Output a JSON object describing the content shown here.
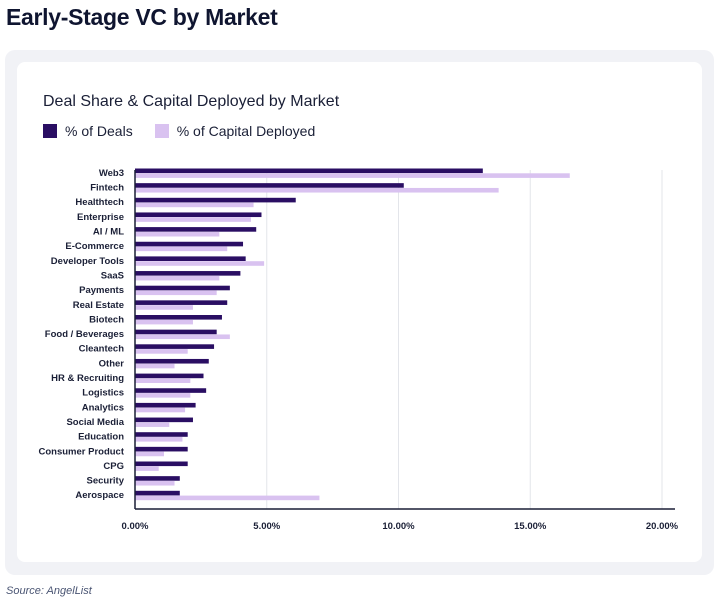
{
  "page": {
    "title": "Early-Stage VC by Market",
    "source": "Source: AngelList"
  },
  "chart_data": {
    "type": "bar",
    "orientation": "horizontal",
    "title": "Deal Share & Capital Deployed by Market",
    "xlabel": "",
    "ylabel": "",
    "xlim": [
      0,
      20
    ],
    "x_ticks": [
      "0.00%",
      "5.00%",
      "10.00%",
      "15.00%",
      "20.00%"
    ],
    "x_tick_values": [
      0,
      5,
      10,
      15,
      20
    ],
    "grid": "vertical",
    "legend_position": "top-left",
    "categories": [
      "Web3",
      "Fintech",
      "Healthtech",
      "Enterprise",
      "AI / ML",
      "E-Commerce",
      "Developer Tools",
      "SaaS",
      "Payments",
      "Real Estate",
      "Biotech",
      "Food / Beverages",
      "Cleantech",
      "Other",
      "HR & Recruiting",
      "Logistics",
      "Analytics",
      "Social Media",
      "Education",
      "Consumer Product",
      "CPG",
      "Security",
      "Aerospace"
    ],
    "series": [
      {
        "name": "% of Deals",
        "color": "#2a0e63",
        "values": [
          13.2,
          10.2,
          6.1,
          4.8,
          4.6,
          4.1,
          4.2,
          4.0,
          3.6,
          3.5,
          3.3,
          3.1,
          3.0,
          2.8,
          2.6,
          2.7,
          2.3,
          2.2,
          2.0,
          2.0,
          2.0,
          1.7,
          1.7
        ]
      },
      {
        "name": "% of Capital Deployed",
        "color": "#d9c2f0",
        "values": [
          16.5,
          13.8,
          4.5,
          4.4,
          3.2,
          3.5,
          4.9,
          3.2,
          3.1,
          2.2,
          2.2,
          3.6,
          2.0,
          1.5,
          2.1,
          2.1,
          1.9,
          1.3,
          1.8,
          1.1,
          0.9,
          1.5,
          7.0
        ]
      }
    ]
  }
}
